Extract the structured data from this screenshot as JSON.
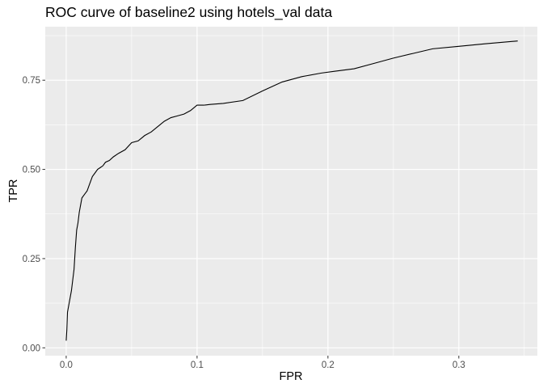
{
  "chart_data": {
    "type": "line",
    "title": "ROC curve of baseline2 using hotels_val data",
    "xlabel": "FPR",
    "ylabel": "TPR",
    "xlim": [
      -0.016,
      0.36
    ],
    "ylim": [
      -0.022,
      0.9
    ],
    "x_ticks": [
      0.0,
      0.1,
      0.2,
      0.3
    ],
    "x_tick_labels": [
      "0.0",
      "0.1",
      "0.2",
      "0.3"
    ],
    "y_ticks": [
      0.0,
      0.25,
      0.5,
      0.75
    ],
    "y_tick_labels": [
      "0.00",
      "0.25",
      "0.50",
      "0.75"
    ],
    "grid": true,
    "background": "#ebebeb",
    "grid_color": "#ffffff",
    "line_color": "#000000",
    "series": [
      {
        "x": [
          0.0,
          0.0005,
          0.001,
          0.002,
          0.003,
          0.004,
          0.005,
          0.006,
          0.007,
          0.008,
          0.009,
          0.01,
          0.011,
          0.012,
          0.014,
          0.016,
          0.018,
          0.02,
          0.022,
          0.024,
          0.026,
          0.028,
          0.03,
          0.033,
          0.036,
          0.04,
          0.045,
          0.05,
          0.055,
          0.06,
          0.065,
          0.07,
          0.075,
          0.08,
          0.085,
          0.09,
          0.095,
          0.1,
          0.105,
          0.11,
          0.12,
          0.135,
          0.15,
          0.165,
          0.18,
          0.195,
          0.205,
          0.22,
          0.235,
          0.25,
          0.265,
          0.28,
          0.3,
          0.32,
          0.345
        ],
        "y": [
          0.02,
          0.05,
          0.1,
          0.12,
          0.14,
          0.16,
          0.19,
          0.22,
          0.28,
          0.33,
          0.35,
          0.38,
          0.4,
          0.42,
          0.43,
          0.44,
          0.46,
          0.48,
          0.49,
          0.5,
          0.505,
          0.51,
          0.52,
          0.525,
          0.535,
          0.545,
          0.555,
          0.575,
          0.58,
          0.595,
          0.605,
          0.62,
          0.635,
          0.645,
          0.65,
          0.655,
          0.665,
          0.68,
          0.68,
          0.682,
          0.685,
          0.693,
          0.72,
          0.745,
          0.76,
          0.77,
          0.775,
          0.782,
          0.797,
          0.812,
          0.825,
          0.838,
          0.845,
          0.852,
          0.86
        ]
      }
    ]
  }
}
